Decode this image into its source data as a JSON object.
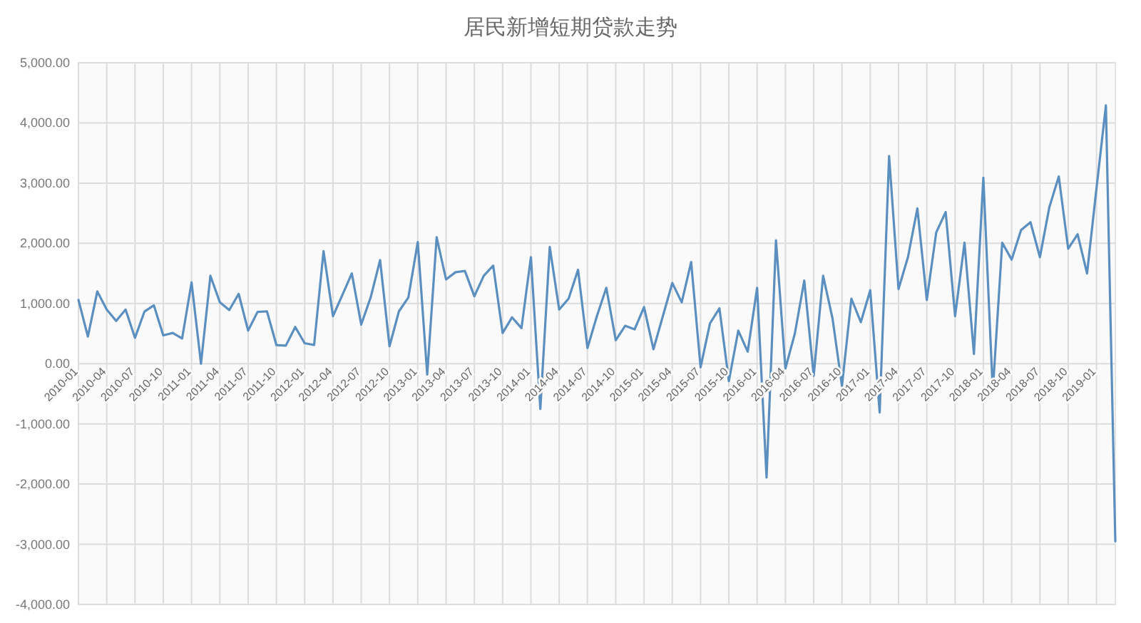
{
  "chart_data": {
    "type": "line",
    "title": "居民新增短期贷款走势",
    "categories": [
      "2010-01",
      null,
      null,
      "2010-04",
      null,
      null,
      "2010-07",
      null,
      null,
      "2010-10",
      null,
      null,
      "2011-01",
      null,
      null,
      "2011-04",
      null,
      null,
      "2011-07",
      null,
      null,
      "2011-10",
      null,
      null,
      "2012-01",
      null,
      null,
      "2012-04",
      null,
      null,
      "2012-07",
      null,
      null,
      "2012-10",
      null,
      null,
      "2013-01",
      null,
      null,
      "2013-04",
      null,
      null,
      "2013-07",
      null,
      null,
      "2013-10",
      null,
      null,
      "2014-01",
      null,
      null,
      "2014-04",
      null,
      null,
      "2014-07",
      null,
      null,
      "2014-10",
      null,
      null,
      "2015-01",
      null,
      null,
      "2015-04",
      null,
      null,
      "2015-07",
      null,
      null,
      "2015-10",
      null,
      null,
      "2016-01",
      null,
      null,
      "2016-04",
      null,
      null,
      "2016-07",
      null,
      null,
      "2016-10",
      null,
      null,
      "2017-01",
      null,
      null,
      "2017-04",
      null,
      null,
      "2017-07",
      null,
      null,
      "2017-10",
      null,
      null,
      "2018-01",
      null,
      null,
      "2018-04",
      null,
      null,
      "2018-07",
      null,
      null,
      "2018-10",
      null,
      null,
      "2019-01",
      null,
      null
    ],
    "series": [
      {
        "color": "#5b8fbf",
        "values": [
          1060,
          450,
          1200,
          900,
          710,
          900,
          430,
          865,
          970,
          470,
          510,
          420,
          1350,
          0,
          1460,
          1020,
          890,
          1160,
          550,
          860,
          870,
          310,
          300,
          610,
          340,
          310,
          1870,
          790,
          1140,
          1500,
          650,
          1100,
          1720,
          290,
          870,
          1100,
          2020,
          -180,
          2100,
          1400,
          1520,
          1540,
          1120,
          1460,
          1630,
          510,
          770,
          590,
          1770,
          -750,
          1940,
          900,
          1080,
          1560,
          260,
          790,
          1260,
          390,
          630,
          570,
          940,
          240,
          790,
          1340,
          1020,
          1690,
          -60,
          670,
          920,
          -290,
          550,
          200,
          1260,
          -1890,
          2050,
          -80,
          500,
          1380,
          -200,
          1460,
          750,
          -370,
          1080,
          690,
          1220,
          -810,
          3450,
          1240,
          1770,
          2580,
          1060,
          2180,
          2520,
          790,
          2010,
          160,
          3090,
          -460,
          2010,
          1730,
          2220,
          2350,
          1770,
          2600,
          3110,
          1910,
          2150,
          1500,
          2910,
          4290,
          -2950
        ]
      }
    ],
    "ylim": [
      -4000,
      5000
    ],
    "yticks": [
      {
        "value": -4000,
        "label": "-4,000.00"
      },
      {
        "value": -3000,
        "label": "-3,000.00"
      },
      {
        "value": -2000,
        "label": "-2,000.00"
      },
      {
        "value": -1000,
        "label": "-1,000.00"
      },
      {
        "value": 0,
        "label": "0.00"
      },
      {
        "value": 1000,
        "label": "1,000.00"
      },
      {
        "value": 2000,
        "label": "2,000.00"
      },
      {
        "value": 3000,
        "label": "3,000.00"
      },
      {
        "value": 4000,
        "label": "4,000.00"
      },
      {
        "value": 5000,
        "label": "5,000.00"
      }
    ],
    "grid": true,
    "marker": "none",
    "line_style": "solid"
  }
}
